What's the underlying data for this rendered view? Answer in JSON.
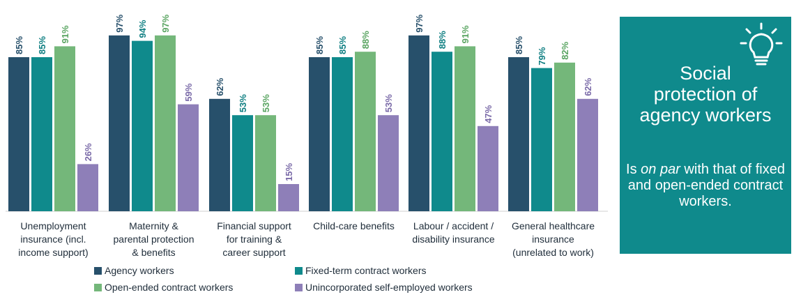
{
  "chart_data": {
    "type": "bar",
    "categories": [
      "Unemployment insurance (incl. income support)",
      "Maternity & parental protection & benefits",
      "Financial support for training & career support",
      "Child-care benefits",
      "Labour / accident / disability insurance",
      "General healthcare insurance (unrelated to work)"
    ],
    "category_lines": [
      [
        "Unemployment",
        "insurance (incl.",
        "income support)"
      ],
      [
        "Maternity &",
        "parental protection",
        "& benefits"
      ],
      [
        "Financial support",
        "for training &",
        "career support"
      ],
      [
        "Child-care benefits"
      ],
      [
        "Labour / accident /",
        "disability insurance"
      ],
      [
        "General healthcare",
        "insurance",
        "(unrelated to work)"
      ]
    ],
    "series": [
      {
        "name": "Agency workers",
        "color": "#27506b",
        "values": [
          85,
          97,
          62,
          85,
          97,
          85
        ],
        "labels": [
          "85%",
          "97%",
          "62%",
          "85%",
          "97%",
          "85%"
        ]
      },
      {
        "name": "Fixed-term contract workers",
        "color": "#0f8a8c",
        "values": [
          85,
          94,
          53,
          85,
          88,
          79
        ],
        "labels": [
          "85%",
          "94%",
          "53%",
          "85%",
          "88%",
          "79%"
        ]
      },
      {
        "name": "Open-ended contract workers",
        "color": "#74b77a",
        "values": [
          91,
          97,
          53,
          88,
          91,
          82
        ],
        "labels": [
          "91%",
          "97%",
          "53%",
          "88%",
          "91%",
          "82%"
        ]
      },
      {
        "name": "Unincorporated self-employed workers",
        "color": "#8e7fb8",
        "values": [
          26,
          59,
          15,
          53,
          47,
          62
        ],
        "labels": [
          "26%",
          "59%",
          "15%",
          "53%",
          "47%",
          "62%"
        ]
      }
    ],
    "ylim": [
      0,
      100
    ],
    "grid": false,
    "legend_position": "bottom",
    "label_color": "#555555"
  },
  "panel": {
    "title": "Social\nprotection of\nagency workers",
    "body_prefix": "Is ",
    "body_emphasis": "on par",
    "body_suffix": " with that of fixed and open-ended contract workers.",
    "icon": "lightbulb-icon"
  }
}
